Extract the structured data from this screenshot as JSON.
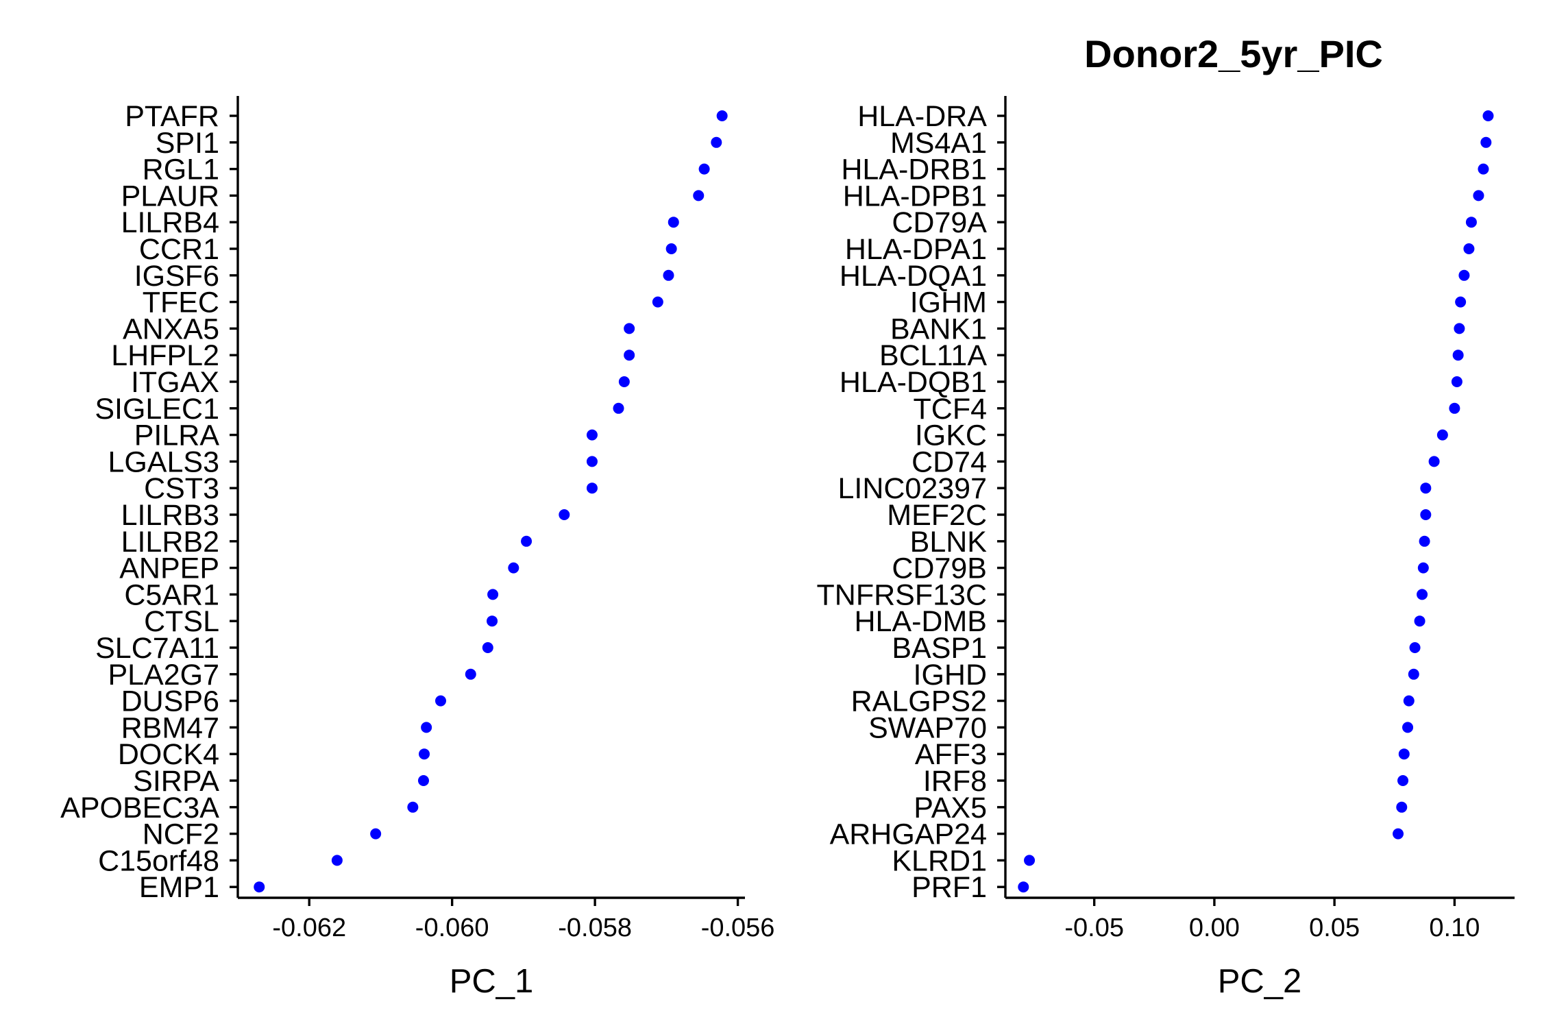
{
  "chart_data": [
    {
      "type": "scatter",
      "title": "",
      "xlabel": "PC_1",
      "ylabel": "",
      "xlim": [
        -0.063,
        -0.0559
      ],
      "xticks": [
        -0.062,
        -0.06,
        -0.058,
        -0.056
      ],
      "xtick_labels": [
        "-0.062",
        "-0.060",
        "-0.058",
        "-0.056"
      ],
      "point_color": "#0000ff",
      "grid": false,
      "points": [
        {
          "gene": "PTAFR",
          "value": -0.05622
        },
        {
          "gene": "SPI1",
          "value": -0.0563
        },
        {
          "gene": "RGL1",
          "value": -0.05647
        },
        {
          "gene": "PLAUR",
          "value": -0.05655
        },
        {
          "gene": "LILRB4",
          "value": -0.0569
        },
        {
          "gene": "CCR1",
          "value": -0.05693
        },
        {
          "gene": "IGSF6",
          "value": -0.05697
        },
        {
          "gene": "TFEC",
          "value": -0.05712
        },
        {
          "gene": "ANXA5",
          "value": -0.05752
        },
        {
          "gene": "LHFPL2",
          "value": -0.05752
        },
        {
          "gene": "ITGAX",
          "value": -0.05759
        },
        {
          "gene": "SIGLEC1",
          "value": -0.05767
        },
        {
          "gene": "PILRA",
          "value": -0.05804
        },
        {
          "gene": "LGALS3",
          "value": -0.05804
        },
        {
          "gene": "CST3",
          "value": -0.05804
        },
        {
          "gene": "LILRB3",
          "value": -0.05843
        },
        {
          "gene": "LILRB2",
          "value": -0.05896
        },
        {
          "gene": "ANPEP",
          "value": -0.05914
        },
        {
          "gene": "C5AR1",
          "value": -0.05943
        },
        {
          "gene": "CTSL",
          "value": -0.05944
        },
        {
          "gene": "SLC7A11",
          "value": -0.0595
        },
        {
          "gene": "PLA2G7",
          "value": -0.05974
        },
        {
          "gene": "DUSP6",
          "value": -0.06016
        },
        {
          "gene": "RBM47",
          "value": -0.06036
        },
        {
          "gene": "DOCK4",
          "value": -0.06039
        },
        {
          "gene": "SIRPA",
          "value": -0.0604
        },
        {
          "gene": "APOBEC3A",
          "value": -0.06055
        },
        {
          "gene": "NCF2",
          "value": -0.06107
        },
        {
          "gene": "C15orf48",
          "value": -0.06161
        },
        {
          "gene": "EMP1",
          "value": -0.0627
        }
      ]
    },
    {
      "type": "scatter",
      "title": "Donor2_5yr_PIC",
      "xlabel": "PC_2",
      "ylabel": "",
      "xlim": [
        -0.087,
        0.125
      ],
      "xticks": [
        -0.05,
        0.0,
        0.05,
        0.1
      ],
      "xtick_labels": [
        "-0.05",
        "0.00",
        "0.05",
        "0.10"
      ],
      "point_color": "#0000ff",
      "grid": false,
      "points": [
        {
          "gene": "HLA-DRA",
          "value": 0.114
        },
        {
          "gene": "MS4A1",
          "value": 0.1131
        },
        {
          "gene": "HLA-DRB1",
          "value": 0.112
        },
        {
          "gene": "HLA-DPB1",
          "value": 0.11
        },
        {
          "gene": "CD79A",
          "value": 0.107
        },
        {
          "gene": "HLA-DPA1",
          "value": 0.106
        },
        {
          "gene": "HLA-DQA1",
          "value": 0.104
        },
        {
          "gene": "IGHM",
          "value": 0.1025
        },
        {
          "gene": "BANK1",
          "value": 0.102
        },
        {
          "gene": "BCL11A",
          "value": 0.1015
        },
        {
          "gene": "HLA-DQB1",
          "value": 0.101
        },
        {
          "gene": "TCF4",
          "value": 0.1
        },
        {
          "gene": "IGKC",
          "value": 0.095
        },
        {
          "gene": "CD74",
          "value": 0.0915
        },
        {
          "gene": "LINC02397",
          "value": 0.088
        },
        {
          "gene": "MEF2C",
          "value": 0.088
        },
        {
          "gene": "BLNK",
          "value": 0.0875
        },
        {
          "gene": "CD79B",
          "value": 0.087
        },
        {
          "gene": "TNFRSF13C",
          "value": 0.0865
        },
        {
          "gene": "HLA-DMB",
          "value": 0.0855
        },
        {
          "gene": "BASP1",
          "value": 0.0835
        },
        {
          "gene": "IGHD",
          "value": 0.083
        },
        {
          "gene": "RALGPS2",
          "value": 0.081
        },
        {
          "gene": "SWAP70",
          "value": 0.0805
        },
        {
          "gene": "AFF3",
          "value": 0.079
        },
        {
          "gene": "IRF8",
          "value": 0.0785
        },
        {
          "gene": "PAX5",
          "value": 0.078
        },
        {
          "gene": "ARHGAP24",
          "value": 0.0765
        },
        {
          "gene": "KLRD1",
          "value": -0.077
        },
        {
          "gene": "PRF1",
          "value": -0.0795
        }
      ]
    }
  ]
}
